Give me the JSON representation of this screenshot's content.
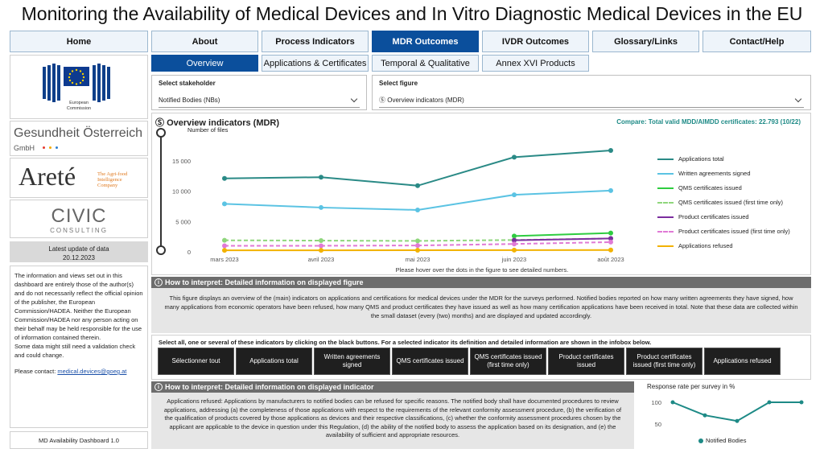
{
  "title": "Monitoring the Availability of Medical Devices and In Vitro Diagnostic Medical Devices in the EU",
  "nav": [
    "Home",
    "About",
    "Process Indicators",
    "MDR Outcomes",
    "IVDR Outcomes",
    "Glossary/Links",
    "Contact/Help"
  ],
  "nav_active": "MDR Outcomes",
  "subtabs": [
    "Overview",
    "Applications & Certificates",
    "Temporal & Qualitative",
    "Annex XVI Products"
  ],
  "subtab_active": "Overview",
  "sidebar": {
    "ec_logo_text": [
      "European",
      "Commission"
    ],
    "goeg_name": "Gesundheit Österreich",
    "goeg_sub": "GmbH",
    "arete_name": "Areté",
    "arete_tag": [
      "The Agri-food",
      "Intelligence",
      "Company"
    ],
    "civic_name": "CIVIC",
    "civic_sub": "CONSULTING",
    "update_label": "Latest update of data",
    "update_date": "20.12.2023",
    "disclaimer_1": "The information and views set out in this dashboard are entirely those of the author(s) and do not necessarily reflect the official opinion of the publisher, the European Commission/HADEA. Neither the European Commission/HADEA nor any person acting on their behalf may be held responsible for the use of information contained therein.",
    "disclaimer_2": "Some data might still need a validation check and could change.",
    "contact_prefix": "Please contact: ",
    "contact_email": "medical.devices@goeg.at",
    "version": "MD Availability Dashboard 1.0"
  },
  "selectors": {
    "stakeholder_label": "Select stakeholder",
    "stakeholder_value": "Notified Bodies (NBs)",
    "figure_label": "Select figure",
    "figure_value": "Overview indicators (MDR)",
    "figure_value_icon": "Ⓢ"
  },
  "chart_header": {
    "title": "Overview indicators (MDR)",
    "title_icon": "Ⓢ",
    "compare": "Compare: Total valid MDD/AIMDD certificates: 22.793 (10/22)",
    "hover_note": "Please hover over the dots in the figure to see detailed numbers."
  },
  "chart_data": {
    "type": "line",
    "ylabel": "Number of files",
    "x": [
      "mars 2023",
      "avril 2023",
      "mai 2023",
      "juin 2023",
      "août 2023"
    ],
    "y_ticks": [
      "15 000",
      "10 000",
      "5 000",
      "0"
    ],
    "ylim": [
      0,
      17500
    ],
    "grid": false,
    "legend_position": "right",
    "series": [
      {
        "name": "Applications total",
        "color": "#2a8a86",
        "dash": false,
        "values": [
          12100,
          12300,
          10900,
          15600,
          16700
        ]
      },
      {
        "name": "Written agreements signed",
        "color": "#5bc3e3",
        "dash": false,
        "values": [
          7900,
          7300,
          6900,
          9400,
          10100
        ]
      },
      {
        "name": "QMS certificates issued",
        "color": "#2ecc40",
        "dash": false,
        "values": [
          null,
          null,
          null,
          2600,
          3100
        ]
      },
      {
        "name": "QMS certificates issued (first time only)",
        "color": "#8fd67c",
        "dash": true,
        "values": [
          1900,
          1850,
          1800,
          1950,
          2200
        ]
      },
      {
        "name": "Product certificates issued",
        "color": "#7b2d9e",
        "dash": false,
        "values": [
          null,
          null,
          null,
          1900,
          2200
        ]
      },
      {
        "name": "Product certificates issued (first time only)",
        "color": "#e07ad6",
        "dash": true,
        "values": [
          1000,
          1000,
          1050,
          1300,
          1600
        ]
      },
      {
        "name": "Applications refused",
        "color": "#f2b200",
        "dash": false,
        "values": [
          250,
          250,
          260,
          280,
          300
        ]
      }
    ]
  },
  "interpret1": {
    "heading": "How to interpret: Detailed information on displayed figure",
    "text": "This figure displays an overview of the (main) indicators on applications and certifications for medical devices under the MDR for the surveys performed. Notified bodies reported on how many written agreements they have signed, how many applications from economic operators have been refused, how many QMS and product certificates they have issued as well as how many certification applications have been received in total. Note that these data are collected within the small dataset (every (two) months) and are displayed and updated accordingly."
  },
  "indicator_select": {
    "prompt": "Select all, one or several of these indicators by clicking on the black buttons. For a selected indicator its definition and detailed information are shown in the infobox below.",
    "buttons": [
      "Sélectionner tout",
      "Applications total",
      "Written agreements signed",
      "QMS certificates issued",
      "QMS certificates issued (first time only)",
      "Product certificates issued",
      "Product certificates issued (first time only)",
      "Applications refused"
    ]
  },
  "interpret2": {
    "heading": "How to interpret: Detailed information on displayed indicator",
    "text": "Applications refused: Applications by manufacturers to notified bodies can be refused for specific reasons. The notified body shall have documented procedures to review applications, addressing (a) the completeness of those applications with respect to the requirements of the relevant conformity assessment procedure, (b) the verification of the qualification of products covered by those applications as devices and their respective classifications, (c) whether the conformity assessment procedures chosen by the applicant are applicable to the device in question under this Regulation, (d) the ability of the notified body to assess the application based on its designation, and (e) the availability of sufficient and appropriate resources."
  },
  "response_chart": {
    "title": "Response rate per survey in %",
    "y_ticks": [
      "100",
      "50"
    ],
    "legend": "Notified Bodies",
    "color": "#1d8a86",
    "values": [
      100,
      70,
      57,
      100,
      100
    ]
  }
}
